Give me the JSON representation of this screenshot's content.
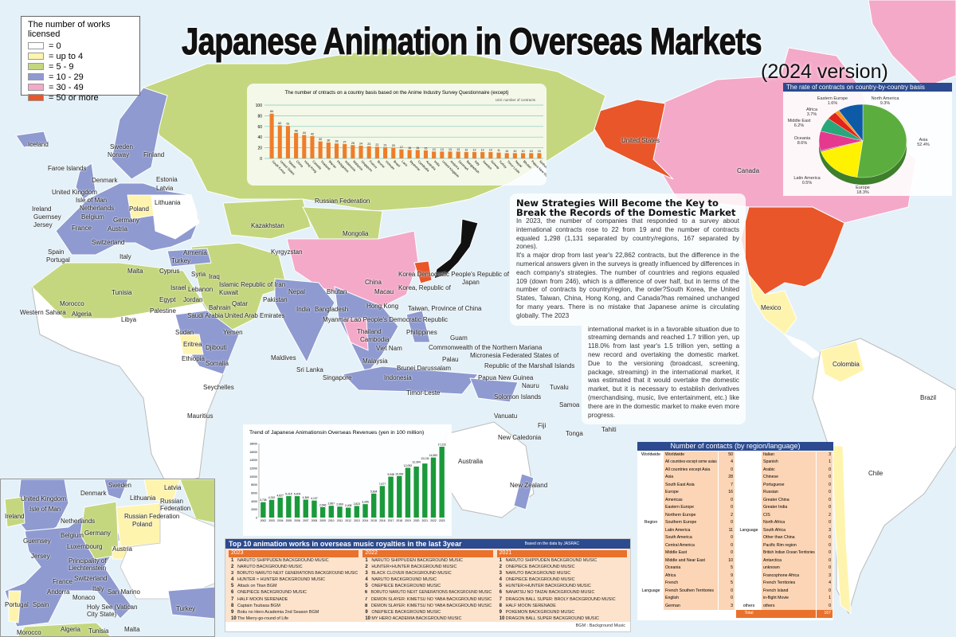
{
  "title": "Japanese Animation in Overseas Markets",
  "subtitle": "(2024 version)",
  "colors": {
    "ocean": "#e4f1f8",
    "zero": "#ffffff",
    "up_to_4": "#fff4ae",
    "five_to_nine": "#c4d77e",
    "ten_to_29": "#8e9ad0",
    "thirty_to_49": "#f4a9c9",
    "fifty_plus": "#e8562a",
    "header_blue": "#2b4a8f",
    "accent_orange": "#e9712b",
    "bar_green": "#1a9a3a"
  },
  "legend": {
    "title": "The number of works licensed",
    "items": [
      {
        "label": "= 0",
        "color": "#ffffff"
      },
      {
        "label": "= up to 4",
        "color": "#fff4ae"
      },
      {
        "label": "= 5 - 9",
        "color": "#c4d77e"
      },
      {
        "label": "= 10 - 29",
        "color": "#8e9ad0"
      },
      {
        "label": "= 30 - 49",
        "color": "#f4a9c9"
      },
      {
        "label": "= 50 or more",
        "color": "#e8562a"
      }
    ]
  },
  "map": {
    "labels": [
      "Iceland",
      "Faroe Islands",
      "United Kingdom",
      "Isle of Man",
      "Ireland",
      "Guernsey",
      "Jersey",
      "Netherlands",
      "Belgium",
      "Germany",
      "France",
      "Austria",
      "Switzerland",
      "Spain",
      "Portugal",
      "Italy",
      "Malta",
      "Finland",
      "Sweden",
      "Norway",
      "Denmark",
      "Estonia",
      "Latvia",
      "Lithuania",
      "Poland",
      "Russian Federation",
      "Kazakhstan",
      "Kyrgyzstan",
      "Mongolia",
      "Turkey",
      "Armenia",
      "Cyprus",
      "Syria",
      "Lebanon",
      "Israel",
      "Jordan",
      "Iraq",
      "Islamic Republic of Iran",
      "Kuwait",
      "Bahrain",
      "Qatar",
      "Saudi Arabia",
      "United Arab Emirates",
      "Pakistan",
      "Morocco",
      "Algeria",
      "Tunisia",
      "Libya",
      "Egypt",
      "Palestine",
      "Western Sahara",
      "Sudan",
      "Eritrea",
      "Yemen",
      "Djibouti",
      "Ethiopia",
      "Somalia",
      "Seychelles",
      "Mauritius",
      "Maldives",
      "India",
      "Sri Lanka",
      "Nepal",
      "Bhutan",
      "Bangladesh",
      "Myanmar",
      "Lao People's Democratic Republic",
      "Thailand",
      "Cambodia",
      "Viet Nam",
      "Malaysia",
      "Singapore",
      "Brunei Darussalam",
      "Indonesia",
      "Timor-Leste",
      "Philippines",
      "China",
      "Hong Kong",
      "Macau",
      "Taiwan, Province of China",
      "Korea Democratic People's Republic of",
      "Korea, Republic of",
      "Japan",
      "Guam",
      "Commonwealth of the Northern Mariana",
      "Republic of the Marshall Islands",
      "Micronesia Federated States of",
      "Palau",
      "Papua New Guinea",
      "Nauru",
      "Solomon Islands",
      "Tuvalu",
      "Samoa",
      "Tahiti",
      "Vanuatu",
      "Fiji",
      "Tonga",
      "New Caledonia",
      "Australia",
      "New Zealand",
      "United States",
      "Canada",
      "Mexico",
      "Colombia",
      "Brazil",
      "Chile"
    ]
  },
  "inset": {
    "labels": [
      "Sweden",
      "Latvia",
      "Russian Federation",
      "Denmark",
      "Lithuania",
      "United Kingdom",
      "Russian Federation",
      "Isle of Man",
      "Ireland",
      "Netherlands",
      "Poland",
      "Germany",
      "Belgium",
      "Guernsey",
      "Jersey",
      "Luxembourg",
      "Principality of Liechtenstein",
      "Austria",
      "Switzerland",
      "France",
      "Italy",
      "Andorra",
      "Monaco",
      "San Marino",
      "Holy See (Vatican City State)",
      "Spain",
      "Portugal",
      "Turkey",
      "Morocco",
      "Algeria",
      "Tunisia",
      "Malta"
    ]
  },
  "article": {
    "heading": "New Strategies Will Become the Key to Break the Records of the Domestic Market",
    "p1": "In 2023, the number of companies that responded to a survey about international contracts rose to 22 from 19 and the number of contracts equaled 1,298 (1,131 separated by country/regions, 167 separated by zones).",
    "p2": "It's a major drop from last year's 22,862 contracts, but the difference in the numerical answers given in the surveys is greatly influenced by differences in each company's strategies. The number of countries and regions equaled 109 (down from 246), which is a difference of over half, but in terms of the number of contracts by country/region, the order?South Korea, the United States, Taiwan, China, Hong Kong, and Canada?has remained unchanged for many years. There is no mistake that Japanese anime is circulating globally. The 2023",
    "p3": "international market is in a favorable situation due to streaming demands and reached 1.7 trillion yen, up 118.0% from last year's 1.5 trillion yen, setting a new record and overtaking the domestic market. Due to the versioning (broadcast, screening, package, streaming) in the international market, it was estimated that it would overtake the domestic market, but it is necessary to establish derivatives (merchandising, music, live entertainment, etc.) like there are in the domestic market to make even more progress."
  },
  "chart_data": [
    {
      "type": "bar",
      "title": "The number of cntracts on a country basis based on the Anime Industry Survey Questionnaire (except)",
      "unit": "Unit: number of contracts",
      "ylim": [
        0,
        100
      ],
      "yticks": [
        0,
        20,
        40,
        60,
        80,
        100
      ],
      "grid": true,
      "bar_color": "#ee7d2a",
      "categories": [
        "South Korea",
        "United States",
        "Taiwan",
        "China",
        "Hong Kong",
        "Canada",
        "Thailand",
        "Macau",
        "Philippines",
        "Indonesia",
        "Malaysia",
        "Singapore",
        "France",
        "Brunei",
        "Vietnam",
        "Brazil",
        "Laos",
        "Myanmar",
        "Cambodia",
        "Australia",
        "India",
        "United Kingdom",
        "Andorra",
        "Denmark",
        "Bangladesh",
        "Italy",
        "Sweden",
        "Norway",
        "Turkey",
        "Timor-Leste",
        "Nepal",
        "Bhutan",
        "Papua New Guinea",
        "Netherlands"
      ],
      "values": [
        84,
        62,
        61,
        48,
        44,
        42,
        32,
        30,
        28,
        27,
        25,
        24,
        23,
        22,
        21,
        20,
        17,
        16,
        16,
        15,
        13,
        13,
        13,
        13,
        12,
        12,
        12,
        12,
        11,
        10,
        10,
        10,
        10,
        10
      ]
    },
    {
      "type": "bar",
      "title": "Trend of Japanese Animationsin Overseas Revenues (yen in 100 million)",
      "ylim": [
        0,
        18000
      ],
      "yticks": [
        0,
        2000,
        4000,
        6000,
        8000,
        10000,
        12000,
        14000,
        16000,
        18000
      ],
      "bar_color": "#1a9a3a",
      "categories": [
        "2002",
        "2003",
        "2004",
        "2005",
        "2006",
        "2007",
        "2008",
        "2009",
        "2010",
        "2011",
        "2012",
        "2013",
        "2014",
        "2015",
        "2016",
        "2017",
        "2018",
        "2019",
        "2020",
        "2021",
        "2022",
        "2023"
      ],
      "values": [
        3736,
        4310,
        4827,
        5215,
        5204,
        4360,
        4137,
        2546,
        2867,
        2669,
        2408,
        2823,
        3265,
        5834,
        7677,
        9948,
        10092,
        12092,
        12394,
        13134,
        14592,
        17222
      ],
      "value_labels": [
        "3,736",
        "4,310",
        "4,827",
        "5,215",
        "5,204",
        "4,360",
        "4,137",
        "2,546",
        "2,867",
        "2,669",
        "2,408",
        "2,823",
        "3,265",
        "5,834",
        "7,677",
        "9,948",
        "10,092",
        "12,092",
        "12,394",
        "13,134",
        "14,592",
        "17,222"
      ]
    },
    {
      "type": "pie",
      "title": "The rate of contracts on country-by-country basis",
      "slices": [
        {
          "label": "Asia",
          "value": 52.4,
          "text": "52.4%",
          "color": "#5bae3d"
        },
        {
          "label": "Europe",
          "value": 18.3,
          "text": "18.3%",
          "color": "#fff200"
        },
        {
          "label": "Latin America",
          "value": 0.5,
          "text": "0.5%",
          "color": "#a4408f"
        },
        {
          "label": "Oceania",
          "value": 8.6,
          "text": "8.6%",
          "color": "#e5398e"
        },
        {
          "label": "Middle East",
          "value": 6.2,
          "text": "6.2%",
          "color": "#2aa77a"
        },
        {
          "label": "Africa",
          "value": 3.7,
          "text": "3.7%",
          "color": "#e2231a"
        },
        {
          "label": "Eastern Europe",
          "value": 1.6,
          "text": "1.6%",
          "color": "#f7941d"
        },
        {
          "label": "North America",
          "value": 9.3,
          "text": "9.3%",
          "color": "#0d5aa7"
        }
      ]
    }
  ],
  "top10": {
    "title": "Top 10 animation works in overseas music royalties in the last 3year",
    "source": "Based on the data by JASRAC",
    "note": "BGM : Background Music",
    "years": [
      {
        "year": "2023",
        "items": [
          "NARUTO SHIPPUDEN BACKGROUND MUSIC",
          "NARUTO BACKGROUND MUSIC",
          "BORUTO NARUTO NEXT GENERATIONS BACKGROUND MUSIC",
          "HUNTER × HUNTER BACKGROUND MUSIC",
          "Attack on Titan BGM",
          "ONEPIECE BACKGROUND MUSIC",
          "HALF MOON SERENADE",
          "Captain Tsubasa BGM",
          "Boku no Hero Academia 2nd Season BGM",
          "The Merry-go-round of Life"
        ]
      },
      {
        "year": "2022",
        "items": [
          "NARUTO SHIPPUDEN BACKGROUND MUSIC",
          "HUNTER×HUNTER BACKGROUND MUSIC",
          "BLACK CLOVER BACKGROUND MUSIC",
          "NARUTO BACKGROUND MUSIC",
          "ONEPIECE BACKGROUND MUSIC",
          "BORUTO NARUTO NEXT GENERATIONS BACKGROUND MUSIC",
          "DEMON SLAYER: KIMETSU NO YABA BACKGROUND MUSIC",
          "DEMON SLAYER: KIMETSU NO YABA BACKGROUND MUSIC",
          "ONEPIECE BACKGROUND MUSIC",
          "MY HERO ACADEMIA BACKGROUND MUSIC"
        ]
      },
      {
        "year": "2021",
        "items": [
          "NARUTO SHIPPUDEN BACKGROUND MUSIC",
          "ONEPIECE BACKGROUND MUSIC",
          "NARUTO BACKGROUND MUSIC",
          "ONEPIECE BACKGROUND MUSIC",
          "HUNTER×HUNTER BACKGROUND MUSIC",
          "NANATSU NO TAIZAI BACKGROUND MUSIC",
          "DRAGON BALL SUPER: BROLY BACKGROUND MUSIC",
          "HALF MOON SERENADE",
          "POKEMON BACKGROUND MUSIC",
          "DRAGON BALL SUPER BACKGROUND MUSIC"
        ]
      }
    ]
  },
  "contacts": {
    "title": "Number of contacts (by region/language)",
    "left": [
      {
        "group": "Worldwide",
        "name": "Worldwide",
        "value": "50"
      },
      {
        "group": "",
        "name": "All countries except some asias",
        "value": "4"
      },
      {
        "group": "",
        "name": "All countries except Asia",
        "value": "0"
      },
      {
        "group": "",
        "name": "Asia",
        "value": "28"
      },
      {
        "group": "",
        "name": "South East Asia",
        "value": "7"
      },
      {
        "group": "",
        "name": "Europe",
        "value": "16"
      },
      {
        "group": "",
        "name": "Americas",
        "value": "0"
      },
      {
        "group": "",
        "name": "Eastern Europe",
        "value": "0"
      },
      {
        "group": "",
        "name": "Northern Europe",
        "value": "2"
      },
      {
        "group": "Region",
        "name": "Southern Europe",
        "value": "0"
      },
      {
        "group": "",
        "name": "Latin America",
        "value": "11"
      },
      {
        "group": "",
        "name": "South America",
        "value": "0"
      },
      {
        "group": "",
        "name": "Central America",
        "value": "0"
      },
      {
        "group": "",
        "name": "Middle East",
        "value": "0"
      },
      {
        "group": "",
        "name": "Middle and Near East",
        "value": "10"
      },
      {
        "group": "",
        "name": "Oceania",
        "value": "5"
      },
      {
        "group": "",
        "name": "Africa",
        "value": "9"
      },
      {
        "group": "",
        "name": "French",
        "value": "5"
      },
      {
        "group": "Language",
        "name": "French Southen Territories",
        "value": "0"
      },
      {
        "group": "",
        "name": "English",
        "value": "0"
      },
      {
        "group": "",
        "name": "German",
        "value": "3"
      }
    ],
    "right": [
      {
        "group": "",
        "name": "Italian",
        "value": "3"
      },
      {
        "group": "",
        "name": "Spanish",
        "value": "1"
      },
      {
        "group": "",
        "name": "Arabic",
        "value": "0"
      },
      {
        "group": "",
        "name": "Chinese",
        "value": "0"
      },
      {
        "group": "",
        "name": "Portuguese",
        "value": "0"
      },
      {
        "group": "",
        "name": "Russian",
        "value": "0"
      },
      {
        "group": "",
        "name": "Greater China",
        "value": "0"
      },
      {
        "group": "",
        "name": "Greater India",
        "value": "0"
      },
      {
        "group": "",
        "name": "CIS",
        "value": "2"
      },
      {
        "group": "",
        "name": "North Africa",
        "value": "0"
      },
      {
        "group": "Language",
        "name": "South Africa",
        "value": "3"
      },
      {
        "group": "",
        "name": "Other than China",
        "value": "0"
      },
      {
        "group": "",
        "name": "Pacific Rim region",
        "value": "0"
      },
      {
        "group": "",
        "name": "British Indian Ocean Territories",
        "value": "0"
      },
      {
        "group": "",
        "name": "Antarctica",
        "value": "0"
      },
      {
        "group": "",
        "name": "unknown",
        "value": "0"
      },
      {
        "group": "",
        "name": "Francophone Africa",
        "value": "3"
      },
      {
        "group": "",
        "name": "French Territories",
        "value": "4"
      },
      {
        "group": "",
        "name": "French Island",
        "value": "0"
      },
      {
        "group": "",
        "name": "in-flight Movie",
        "value": "1"
      },
      {
        "group": "others",
        "name": "others",
        "value": "0"
      }
    ],
    "total_label": "Total",
    "total_value": "167"
  }
}
